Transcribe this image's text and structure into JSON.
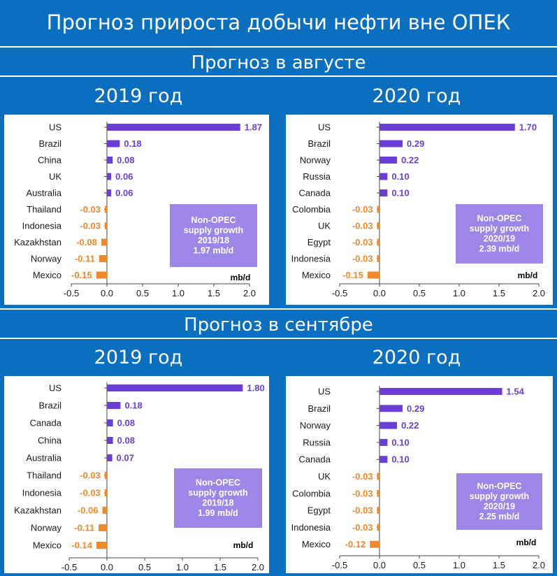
{
  "header": {
    "title": "Прогноз прироста добычи нефти вне ОПЕК",
    "section_august": "Прогноз в августе",
    "section_september": "Прогноз в сентябре"
  },
  "colors": {
    "positive": "#6b3fd6",
    "negative": "#ee8a2c",
    "note_bg": "#9e86e8"
  },
  "chart_data": [
    {
      "type": "bar",
      "orientation": "horizontal",
      "panel_title": "2019 год",
      "section": "Прогноз в августе",
      "categories": [
        "US",
        "Brazil",
        "China",
        "UK",
        "Australia",
        "Thailand",
        "Indonesia",
        "Kazakhstan",
        "Norway",
        "Mexico"
      ],
      "values": [
        1.87,
        0.18,
        0.08,
        0.06,
        0.06,
        -0.03,
        -0.03,
        -0.08,
        -0.11,
        -0.15
      ],
      "value_labels": [
        "1.87",
        "0.18",
        "0.08",
        "0.06",
        "0.06",
        "-0.03",
        "-0.03",
        "-0.08",
        "-0.11",
        "-0.15"
      ],
      "xlim": [
        -0.5,
        2.0
      ],
      "xticks": [
        "-0.5",
        "0.0",
        "0.5",
        "1.0",
        "1.5",
        "2.0"
      ],
      "unit": "mb/d",
      "note": [
        "Non-OPEC",
        "supply growth",
        "2019/18",
        "1.97 mb/d"
      ]
    },
    {
      "type": "bar",
      "orientation": "horizontal",
      "panel_title": "2020 год",
      "section": "Прогноз в августе",
      "categories": [
        "US",
        "Brazil",
        "Norway",
        "Russia",
        "Canada",
        "Colombia",
        "UK",
        "Egypt",
        "Indonesia",
        "Mexico"
      ],
      "values": [
        1.7,
        0.29,
        0.22,
        0.1,
        0.1,
        -0.03,
        -0.03,
        -0.03,
        -0.03,
        -0.15
      ],
      "value_labels": [
        "1.70",
        "0.29",
        "0.22",
        "0.10",
        "0.10",
        "-0.03",
        "-0.03",
        "-0.03",
        "-0.03",
        "-0.15"
      ],
      "xlim": [
        -0.5,
        2.0
      ],
      "xticks": [
        "-0.5",
        "0.0",
        "0.5",
        "1.0",
        "1.5",
        "2.0"
      ],
      "unit": "mb/d",
      "note": [
        "Non-OPEC",
        "supply growth",
        "2020/19",
        "2.39 mb/d"
      ]
    },
    {
      "type": "bar",
      "orientation": "horizontal",
      "panel_title": "2019 год",
      "section": "Прогноз в сентябре",
      "categories": [
        "US",
        "Brazil",
        "Canada",
        "China",
        "Australia",
        "Thailand",
        "Indonesia",
        "Kazakhstan",
        "Norway",
        "Mexico"
      ],
      "values": [
        1.8,
        0.18,
        0.08,
        0.08,
        0.07,
        -0.03,
        -0.03,
        -0.06,
        -0.11,
        -0.14
      ],
      "value_labels": [
        "1.80",
        "0.18",
        "0.08",
        "0.08",
        "0.07",
        "-0.03",
        "-0.03",
        "-0.06",
        "-0.11",
        "-0.14"
      ],
      "xlim": [
        -0.5,
        2.0
      ],
      "xticks": [
        "-0.5",
        "0.0",
        "0.5",
        "1.0",
        "1.5",
        "2.0"
      ],
      "unit": "mb/d",
      "note": [
        "Non-OPEC",
        "supply growth",
        "2019/18",
        "1.99 mb/d"
      ]
    },
    {
      "type": "bar",
      "orientation": "horizontal",
      "panel_title": "2020 год",
      "section": "Прогноз в сентябре",
      "categories": [
        "US",
        "Brazil",
        "Norway",
        "Russia",
        "Canada",
        "UK",
        "Colombia",
        "Egypt",
        "Indonesia",
        "Mexico"
      ],
      "values": [
        1.54,
        0.29,
        0.22,
        0.1,
        0.1,
        -0.03,
        -0.03,
        -0.03,
        -0.03,
        -0.12
      ],
      "value_labels": [
        "1.54",
        "0.29",
        "0.22",
        "0.10",
        "0.10",
        "-0.03",
        "-0.03",
        "-0.03",
        "-0.03",
        "-0.12"
      ],
      "xlim": [
        -0.5,
        2.0
      ],
      "xticks": [
        "-0.5",
        "0.0",
        "0.5",
        "1.0",
        "1.5",
        "2.0"
      ],
      "unit": "mb/d",
      "note": [
        "Non-OPEC",
        "supply growth",
        "2020/19",
        "2.25 mb/d"
      ]
    }
  ]
}
